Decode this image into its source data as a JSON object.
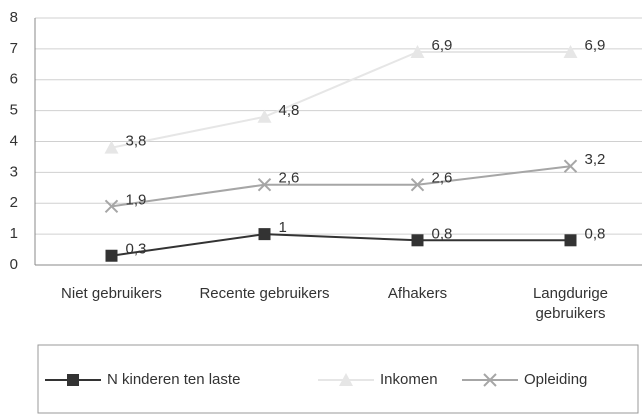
{
  "chart_data": {
    "type": "line",
    "categories": [
      "Niet gebruikers",
      "Recente gebruikers",
      "Afhakers",
      "Langdurige gebruikers"
    ],
    "series": [
      {
        "name": "N kinderen ten laste",
        "color": "#333333",
        "marker": "square",
        "values": [
          0.3,
          1,
          0.8,
          0.8
        ],
        "value_labels": [
          "0,3",
          "1",
          "0,8",
          "0,8"
        ]
      },
      {
        "name": "Inkomen",
        "color": "#e6e6e6",
        "marker": "triangle",
        "values": [
          3.8,
          4.8,
          6.9,
          6.9
        ],
        "value_labels": [
          "3,8",
          "4,8",
          "6,9",
          "6,9"
        ]
      },
      {
        "name": "Opleiding",
        "color": "#a6a6a6",
        "marker": "x",
        "values": [
          1.9,
          2.6,
          2.6,
          3.2
        ],
        "value_labels": [
          "1,9",
          "2,6",
          "2,6",
          "3,2"
        ]
      }
    ],
    "ylim": [
      0,
      8
    ],
    "yticks": [
      0,
      1,
      2,
      3,
      4,
      5,
      6,
      7,
      8
    ],
    "grid": true,
    "legend": "bottom"
  }
}
